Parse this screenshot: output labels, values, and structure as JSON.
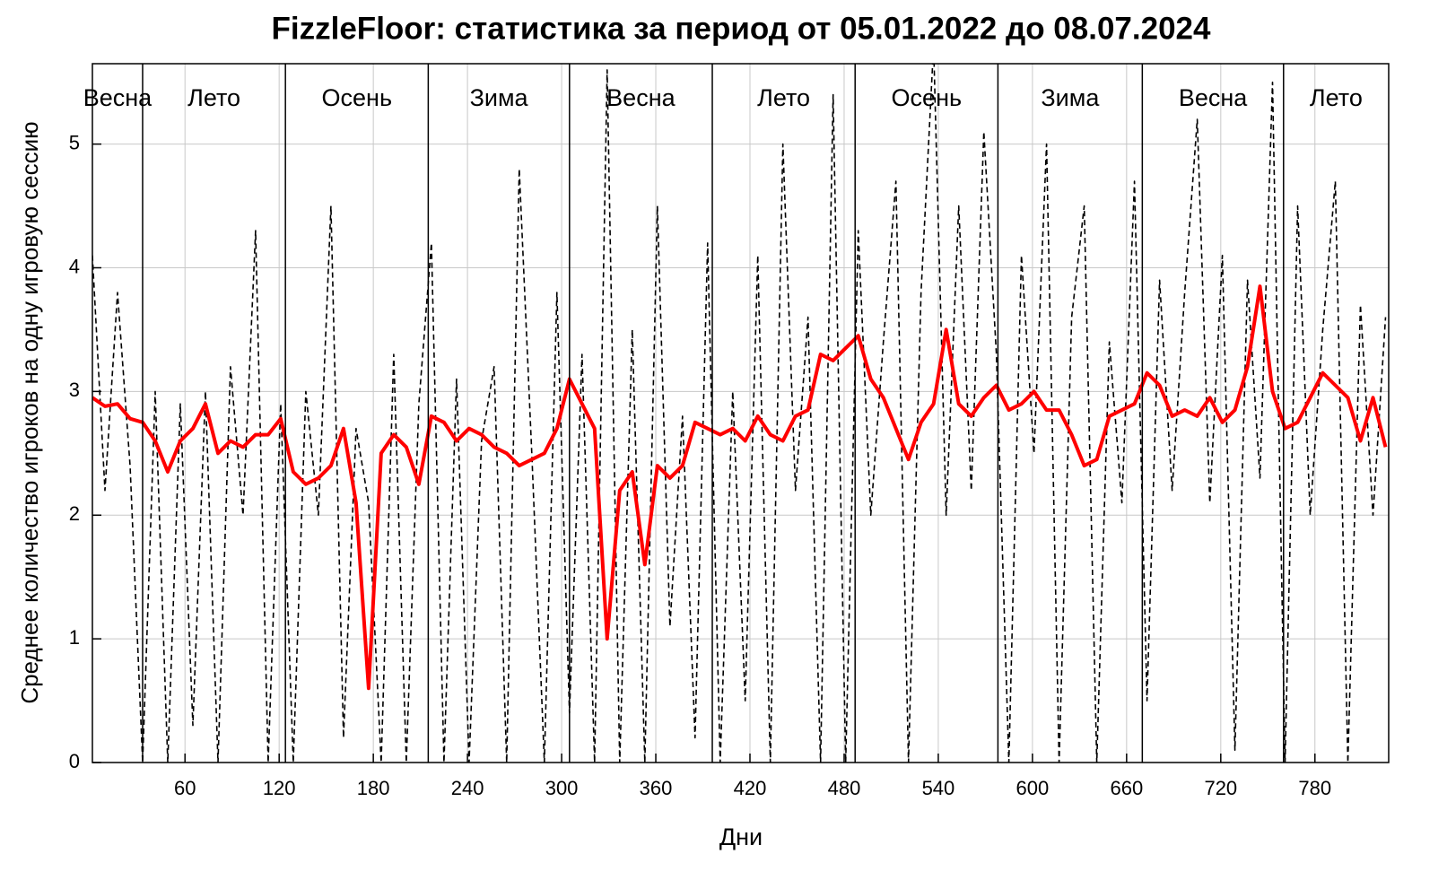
{
  "chart_data": {
    "type": "line",
    "title": "FizzleFloor: статистика за период от 05.01.2022 до 08.07.2024",
    "x_label": "Дни",
    "y_label": "Среднее количество игроков на одну игровую сессию",
    "xlim": [
      1,
      827
    ],
    "ylim": [
      0,
      5.65
    ],
    "xticks": [
      60,
      120,
      180,
      240,
      300,
      360,
      420,
      480,
      540,
      600,
      660,
      720,
      780
    ],
    "yticks": [
      0,
      1,
      2,
      3,
      4,
      5
    ],
    "grid": true,
    "seasons": [
      {
        "name": "Весна",
        "start": 1,
        "end": 33
      },
      {
        "name": "Лето",
        "start": 33,
        "end": 124
      },
      {
        "name": "Осень",
        "start": 124,
        "end": 215
      },
      {
        "name": "Зима",
        "start": 215,
        "end": 305
      },
      {
        "name": "Весна",
        "start": 305,
        "end": 396
      },
      {
        "name": "Лето",
        "start": 396,
        "end": 487
      },
      {
        "name": "Осень",
        "start": 487,
        "end": 578
      },
      {
        "name": "Зима",
        "start": 578,
        "end": 670
      },
      {
        "name": "Весна",
        "start": 670,
        "end": 760
      },
      {
        "name": "Лето",
        "start": 760,
        "end": 827
      }
    ],
    "x": [
      1,
      9,
      17,
      25,
      33,
      41,
      49,
      57,
      65,
      73,
      81,
      89,
      97,
      105,
      113,
      121,
      129,
      137,
      145,
      153,
      161,
      169,
      177,
      185,
      193,
      201,
      209,
      217,
      225,
      233,
      241,
      249,
      257,
      265,
      273,
      281,
      289,
      297,
      305,
      313,
      321,
      329,
      337,
      345,
      353,
      361,
      369,
      377,
      385,
      393,
      401,
      409,
      417,
      425,
      433,
      441,
      449,
      457,
      465,
      473,
      481,
      489,
      497,
      505,
      513,
      521,
      529,
      537,
      545,
      553,
      561,
      569,
      577,
      585,
      593,
      601,
      609,
      617,
      625,
      633,
      641,
      649,
      657,
      665,
      673,
      681,
      689,
      697,
      705,
      713,
      721,
      729,
      737,
      745,
      753,
      761,
      769,
      777,
      785,
      793,
      801,
      809,
      817,
      825
    ],
    "series": [
      {
        "color": "#000000",
        "dash": true,
        "values": [
          4.1,
          2.2,
          3.8,
          2.4,
          0,
          3.0,
          0,
          2.9,
          0.3,
          3.0,
          0,
          3.2,
          2.0,
          4.3,
          0,
          2.9,
          0,
          3.0,
          2.0,
          4.5,
          0.2,
          2.7,
          2.1,
          0,
          3.3,
          0,
          2.9,
          4.2,
          0,
          3.1,
          0,
          2.6,
          3.2,
          0,
          4.8,
          2.5,
          0,
          3.8,
          0.4,
          3.3,
          0,
          5.6,
          0,
          3.5,
          0,
          4.5,
          1.1,
          2.8,
          0.2,
          4.2,
          0,
          3.0,
          0.5,
          4.1,
          0,
          5.0,
          2.2,
          3.6,
          0,
          5.4,
          0,
          4.3,
          2.0,
          3.4,
          4.7,
          0,
          3.8,
          5.8,
          2.0,
          4.5,
          2.2,
          5.1,
          3.3,
          0,
          4.1,
          2.5,
          5.0,
          0,
          3.6,
          4.5,
          0,
          3.4,
          2.1,
          4.7,
          0.5,
          3.9,
          2.2,
          3.8,
          5.2,
          2.1,
          4.1,
          0.1,
          3.9,
          2.3,
          5.5,
          0,
          4.5,
          2.0,
          3.5,
          4.7,
          0,
          3.7,
          2.0,
          3.6
        ]
      },
      {
        "color": "#ff0000",
        "dash": false,
        "values": [
          2.95,
          2.88,
          2.9,
          2.78,
          2.75,
          2.6,
          2.35,
          2.6,
          2.7,
          2.9,
          2.5,
          2.6,
          2.55,
          2.65,
          2.65,
          2.78,
          2.35,
          2.25,
          2.3,
          2.4,
          2.7,
          2.1,
          0.6,
          2.5,
          2.65,
          2.55,
          2.25,
          2.8,
          2.75,
          2.6,
          2.7,
          2.65,
          2.55,
          2.5,
          2.4,
          2.45,
          2.5,
          2.7,
          3.1,
          2.9,
          2.7,
          1.0,
          2.2,
          2.35,
          1.6,
          2.4,
          2.3,
          2.4,
          2.75,
          2.7,
          2.65,
          2.7,
          2.6,
          2.8,
          2.65,
          2.6,
          2.8,
          2.85,
          3.3,
          3.25,
          3.35,
          3.45,
          3.1,
          2.95,
          2.7,
          2.45,
          2.75,
          2.9,
          3.5,
          2.9,
          2.8,
          2.95,
          3.05,
          2.85,
          2.9,
          3.0,
          2.85,
          2.85,
          2.65,
          2.4,
          2.45,
          2.8,
          2.85,
          2.9,
          3.15,
          3.05,
          2.8,
          2.85,
          2.8,
          2.95,
          2.75,
          2.85,
          3.2,
          3.85,
          3.0,
          2.7,
          2.75,
          2.95,
          3.15,
          3.05,
          2.95,
          2.6,
          2.95,
          2.55
        ]
      }
    ]
  }
}
